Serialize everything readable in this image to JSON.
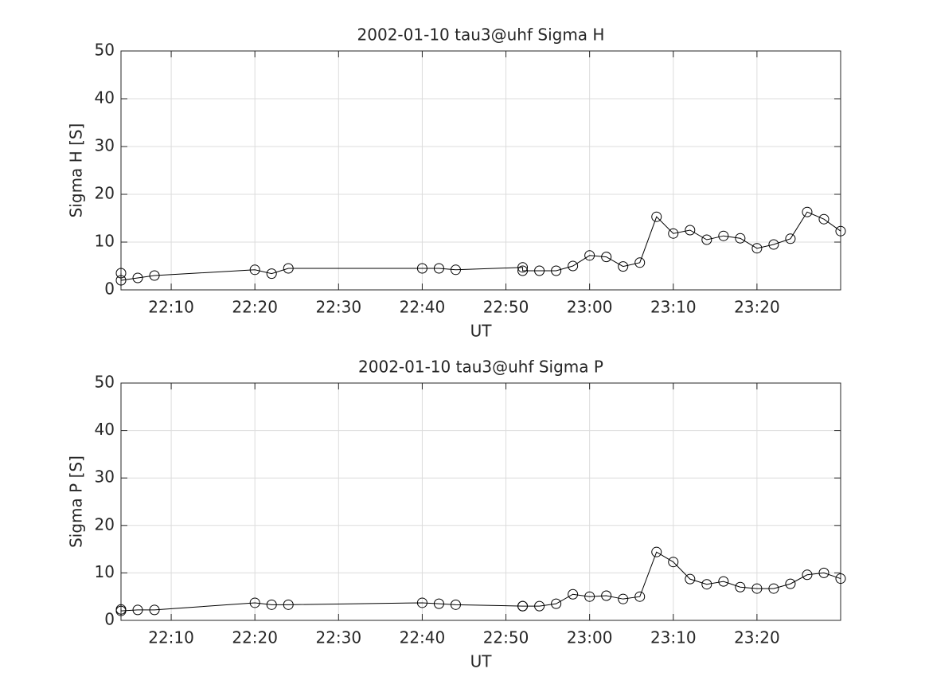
{
  "chart_data": [
    {
      "type": "line",
      "title": "2002-01-10  tau3@uhf Sigma H",
      "xlabel": "UT",
      "ylabel": "Sigma H [S]",
      "x": [
        "22:04",
        "22:04",
        "22:06",
        "22:08",
        "22:20",
        "22:22",
        "22:24",
        "22:40",
        "22:42",
        "22:44",
        "22:52",
        "22:52",
        "22:54",
        "22:56",
        "22:58",
        "23:00",
        "23:02",
        "23:04",
        "23:06",
        "23:08",
        "23:10",
        "23:12",
        "23:14",
        "23:16",
        "23:18",
        "23:20",
        "23:22",
        "23:24",
        "23:26",
        "23:28",
        "23:30"
      ],
      "values": [
        3.5,
        2.0,
        2.5,
        3.0,
        4.2,
        3.4,
        4.5,
        4.5,
        4.5,
        4.2,
        4.7,
        4.0,
        4.0,
        4.0,
        5.0,
        7.2,
        6.9,
        4.9,
        5.7,
        15.3,
        11.8,
        12.5,
        10.5,
        11.3,
        10.8,
        8.7,
        9.5,
        10.7,
        16.3,
        14.8,
        12.3
      ],
      "color": "#000000",
      "xlim": [
        "22:04",
        "23:30"
      ],
      "xticks": [
        "22:10",
        "22:20",
        "22:30",
        "22:40",
        "22:50",
        "23:00",
        "23:10",
        "23:20"
      ],
      "ylim": [
        0,
        50
      ],
      "yticks": [
        0,
        10,
        20,
        30,
        40,
        50
      ],
      "grid": true
    },
    {
      "type": "line",
      "title": "2002-01-10  tau3@uhf Sigma P",
      "xlabel": "UT",
      "ylabel": "Sigma P [S]",
      "x": [
        "22:04",
        "22:04",
        "22:06",
        "22:08",
        "22:20",
        "22:22",
        "22:24",
        "22:40",
        "22:42",
        "22:44",
        "22:52",
        "22:52",
        "22:54",
        "22:56",
        "22:58",
        "23:00",
        "23:02",
        "23:04",
        "23:06",
        "23:08",
        "23:10",
        "23:12",
        "23:14",
        "23:16",
        "23:18",
        "23:20",
        "23:22",
        "23:24",
        "23:26",
        "23:28",
        "23:30"
      ],
      "values": [
        2.3,
        2.0,
        2.2,
        2.2,
        3.7,
        3.3,
        3.3,
        3.7,
        3.5,
        3.3,
        3.0,
        3.0,
        3.0,
        3.5,
        5.5,
        5.0,
        5.2,
        4.5,
        5.0,
        14.4,
        12.3,
        8.7,
        7.6,
        8.2,
        7.0,
        6.7,
        6.7,
        7.7,
        9.6,
        10.0,
        8.8
      ],
      "color": "#000000",
      "xlim": [
        "22:04",
        "23:30"
      ],
      "xticks": [
        "22:10",
        "22:20",
        "22:30",
        "22:40",
        "22:50",
        "23:00",
        "23:10",
        "23:20"
      ],
      "ylim": [
        0,
        50
      ],
      "yticks": [
        0,
        10,
        20,
        30,
        40,
        50
      ],
      "grid": true
    }
  ]
}
